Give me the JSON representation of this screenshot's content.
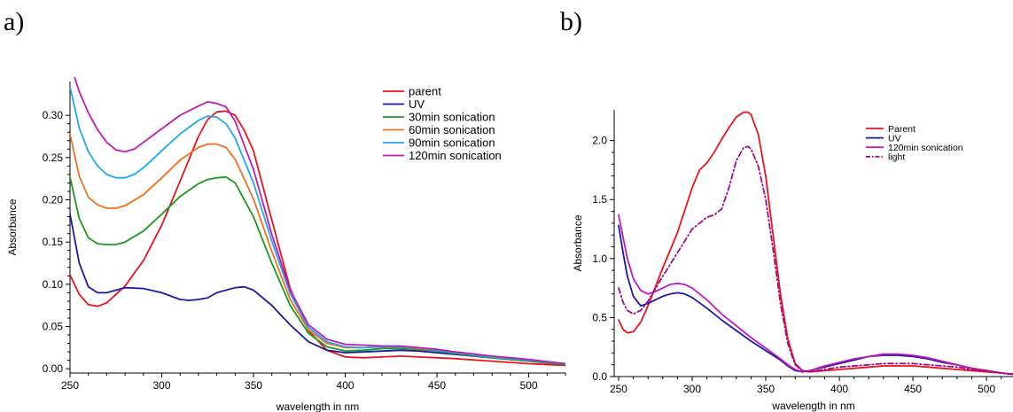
{
  "panels": {
    "a_label": "a)",
    "b_label": "b)"
  },
  "chart_data": [
    {
      "type": "line",
      "xlabel": "wavelength in nm",
      "ylabel": "Absorbance",
      "xlim": [
        250,
        520
      ],
      "ylim": [
        -0.005,
        0.34
      ],
      "xticks": [
        250,
        300,
        350,
        400,
        450,
        500
      ],
      "yticks": [
        0.0,
        0.05,
        0.1,
        0.15,
        0.2,
        0.25,
        0.3
      ],
      "ytick_labels": [
        "0.00",
        "0.05",
        "0.10",
        "0.15",
        "0.20",
        "0.25",
        "0.30"
      ],
      "legend_position": "top-right",
      "grid": false,
      "series": [
        {
          "name": "parent",
          "color": "#e8141c",
          "x": [
            250,
            255,
            260,
            265,
            270,
            280,
            290,
            300,
            310,
            320,
            325,
            330,
            335,
            340,
            345,
            350,
            360,
            370,
            380,
            390,
            400,
            410,
            420,
            430,
            440,
            450,
            460,
            480,
            500,
            520
          ],
          "y": [
            0.111,
            0.088,
            0.076,
            0.074,
            0.078,
            0.098,
            0.128,
            0.17,
            0.222,
            0.275,
            0.295,
            0.304,
            0.305,
            0.3,
            0.282,
            0.258,
            0.176,
            0.095,
            0.045,
            0.022,
            0.014,
            0.013,
            0.014,
            0.015,
            0.014,
            0.013,
            0.012,
            0.009,
            0.006,
            0.004
          ]
        },
        {
          "name": "UV",
          "color": "#1a1aa6",
          "x": [
            250,
            255,
            260,
            265,
            270,
            280,
            290,
            300,
            310,
            315,
            320,
            325,
            330,
            335,
            340,
            345,
            350,
            360,
            370,
            380,
            390,
            400,
            410,
            420,
            430,
            440,
            450,
            460,
            480,
            500,
            520
          ],
          "y": [
            0.183,
            0.125,
            0.097,
            0.09,
            0.09,
            0.096,
            0.095,
            0.09,
            0.082,
            0.081,
            0.082,
            0.084,
            0.09,
            0.093,
            0.096,
            0.097,
            0.093,
            0.075,
            0.052,
            0.032,
            0.022,
            0.019,
            0.02,
            0.021,
            0.022,
            0.021,
            0.019,
            0.017,
            0.013,
            0.009,
            0.005
          ]
        },
        {
          "name": "30min sonication",
          "color": "#1c9a1c",
          "x": [
            250,
            255,
            260,
            265,
            270,
            275,
            280,
            290,
            300,
            310,
            320,
            325,
            330,
            335,
            340,
            350,
            360,
            370,
            380,
            390,
            400,
            410,
            420,
            430,
            440,
            450,
            460,
            480,
            500,
            520
          ],
          "y": [
            0.227,
            0.178,
            0.155,
            0.148,
            0.147,
            0.147,
            0.15,
            0.163,
            0.183,
            0.204,
            0.219,
            0.224,
            0.226,
            0.227,
            0.22,
            0.18,
            0.125,
            0.075,
            0.042,
            0.026,
            0.021,
            0.022,
            0.024,
            0.024,
            0.023,
            0.021,
            0.018,
            0.013,
            0.009,
            0.005
          ]
        },
        {
          "name": "60min sonication",
          "color": "#f07020",
          "x": [
            250,
            255,
            260,
            265,
            270,
            275,
            280,
            290,
            300,
            310,
            320,
            325,
            330,
            335,
            340,
            350,
            360,
            370,
            380,
            390,
            400,
            410,
            420,
            430,
            440,
            450,
            460,
            480,
            500,
            520
          ],
          "y": [
            0.278,
            0.228,
            0.203,
            0.194,
            0.19,
            0.19,
            0.193,
            0.206,
            0.226,
            0.247,
            0.262,
            0.266,
            0.266,
            0.262,
            0.248,
            0.201,
            0.139,
            0.082,
            0.046,
            0.03,
            0.025,
            0.025,
            0.026,
            0.026,
            0.024,
            0.022,
            0.019,
            0.014,
            0.01,
            0.006
          ]
        },
        {
          "name": "90min sonication",
          "color": "#1ea8ee",
          "x": [
            250,
            255,
            260,
            265,
            270,
            275,
            280,
            285,
            290,
            300,
            310,
            320,
            325,
            330,
            335,
            340,
            350,
            360,
            370,
            380,
            390,
            400,
            410,
            420,
            430,
            440,
            450,
            460,
            480,
            500,
            520
          ],
          "y": [
            0.334,
            0.285,
            0.257,
            0.24,
            0.23,
            0.226,
            0.226,
            0.23,
            0.238,
            0.258,
            0.278,
            0.294,
            0.299,
            0.298,
            0.29,
            0.273,
            0.22,
            0.151,
            0.089,
            0.049,
            0.032,
            0.026,
            0.025,
            0.026,
            0.026,
            0.025,
            0.022,
            0.019,
            0.014,
            0.01,
            0.006
          ]
        },
        {
          "name": "120min sonication",
          "color": "#c01ab4",
          "x": [
            250,
            255,
            260,
            265,
            270,
            275,
            280,
            285,
            290,
            300,
            310,
            320,
            325,
            330,
            335,
            340,
            350,
            360,
            370,
            380,
            390,
            400,
            410,
            420,
            430,
            440,
            450,
            460,
            480,
            500,
            520
          ],
          "y": [
            0.362,
            0.328,
            0.303,
            0.283,
            0.268,
            0.259,
            0.257,
            0.26,
            0.268,
            0.284,
            0.3,
            0.311,
            0.316,
            0.314,
            0.31,
            0.293,
            0.236,
            0.159,
            0.093,
            0.052,
            0.035,
            0.029,
            0.028,
            0.027,
            0.027,
            0.025,
            0.023,
            0.02,
            0.015,
            0.011,
            0.006
          ]
        }
      ]
    },
    {
      "type": "line",
      "xlabel": "wavelength in nm",
      "ylabel": "Absorbance",
      "xlim": [
        247,
        518
      ],
      "ylim": [
        0,
        2.26
      ],
      "xticks": [
        250,
        300,
        350,
        400,
        450,
        500
      ],
      "yticks": [
        0.0,
        0.5,
        1.0,
        1.5,
        2.0
      ],
      "ytick_labels": [
        "0.0",
        "0.5",
        "1.0",
        "1.5",
        "2.0"
      ],
      "legend_position": "top-right",
      "grid": false,
      "series": [
        {
          "name": "Parent",
          "color": "#e8141c",
          "dash": "solid",
          "x": [
            250,
            253,
            256,
            260,
            265,
            270,
            280,
            290,
            300,
            305,
            310,
            315,
            320,
            325,
            330,
            335,
            338,
            340,
            345,
            350,
            355,
            360,
            365,
            370,
            375,
            380,
            390,
            400,
            410,
            420,
            430,
            440,
            450,
            460,
            470,
            480,
            490,
            500,
            510,
            518
          ],
          "y": [
            0.48,
            0.4,
            0.37,
            0.38,
            0.46,
            0.6,
            0.92,
            1.22,
            1.6,
            1.75,
            1.81,
            1.9,
            2.01,
            2.11,
            2.2,
            2.24,
            2.24,
            2.22,
            2.05,
            1.7,
            1.2,
            0.7,
            0.32,
            0.11,
            0.05,
            0.04,
            0.05,
            0.06,
            0.07,
            0.08,
            0.09,
            0.09,
            0.09,
            0.08,
            0.07,
            0.06,
            0.05,
            0.04,
            0.03,
            0.02
          ]
        },
        {
          "name": "UV",
          "color": "#1a1aa6",
          "dash": "solid",
          "x": [
            250,
            253,
            256,
            260,
            265,
            270,
            275,
            280,
            285,
            290,
            295,
            300,
            310,
            320,
            330,
            340,
            350,
            360,
            365,
            370,
            375,
            380,
            390,
            400,
            410,
            420,
            430,
            440,
            450,
            460,
            470,
            480,
            490,
            500,
            510,
            518
          ],
          "y": [
            1.28,
            1.05,
            0.85,
            0.68,
            0.6,
            0.62,
            0.65,
            0.68,
            0.7,
            0.71,
            0.7,
            0.67,
            0.58,
            0.48,
            0.39,
            0.3,
            0.22,
            0.14,
            0.09,
            0.05,
            0.04,
            0.05,
            0.08,
            0.11,
            0.14,
            0.17,
            0.18,
            0.18,
            0.17,
            0.15,
            0.12,
            0.1,
            0.07,
            0.05,
            0.03,
            0.02
          ]
        },
        {
          "name": "120min sonication",
          "color": "#c01ab4",
          "dash": "solid",
          "x": [
            250,
            253,
            256,
            260,
            265,
            270,
            275,
            280,
            285,
            290,
            295,
            300,
            310,
            320,
            330,
            340,
            350,
            360,
            365,
            370,
            375,
            380,
            390,
            400,
            410,
            420,
            430,
            440,
            450,
            460,
            470,
            480,
            490,
            500,
            510,
            518
          ],
          "y": [
            1.37,
            1.18,
            1.0,
            0.83,
            0.73,
            0.7,
            0.72,
            0.75,
            0.78,
            0.79,
            0.78,
            0.75,
            0.65,
            0.53,
            0.43,
            0.33,
            0.24,
            0.15,
            0.1,
            0.06,
            0.04,
            0.05,
            0.09,
            0.12,
            0.15,
            0.17,
            0.19,
            0.19,
            0.18,
            0.16,
            0.13,
            0.1,
            0.07,
            0.05,
            0.03,
            0.02
          ]
        },
        {
          "name": "light",
          "color": "#a00a8a",
          "dash": "dashdot",
          "x": [
            250,
            253,
            256,
            260,
            265,
            270,
            280,
            290,
            300,
            305,
            310,
            315,
            320,
            325,
            330,
            335,
            338,
            340,
            345,
            350,
            355,
            360,
            365,
            370,
            375,
            380,
            390,
            400,
            410,
            420,
            430,
            440,
            450,
            460,
            470,
            480,
            490,
            500,
            510,
            518
          ],
          "y": [
            0.75,
            0.63,
            0.56,
            0.53,
            0.56,
            0.64,
            0.85,
            1.05,
            1.25,
            1.3,
            1.35,
            1.37,
            1.42,
            1.6,
            1.83,
            1.94,
            1.95,
            1.93,
            1.78,
            1.5,
            1.08,
            0.62,
            0.28,
            0.1,
            0.05,
            0.04,
            0.06,
            0.08,
            0.09,
            0.1,
            0.11,
            0.11,
            0.11,
            0.1,
            0.09,
            0.08,
            0.06,
            0.05,
            0.03,
            0.02
          ]
        }
      ]
    }
  ]
}
